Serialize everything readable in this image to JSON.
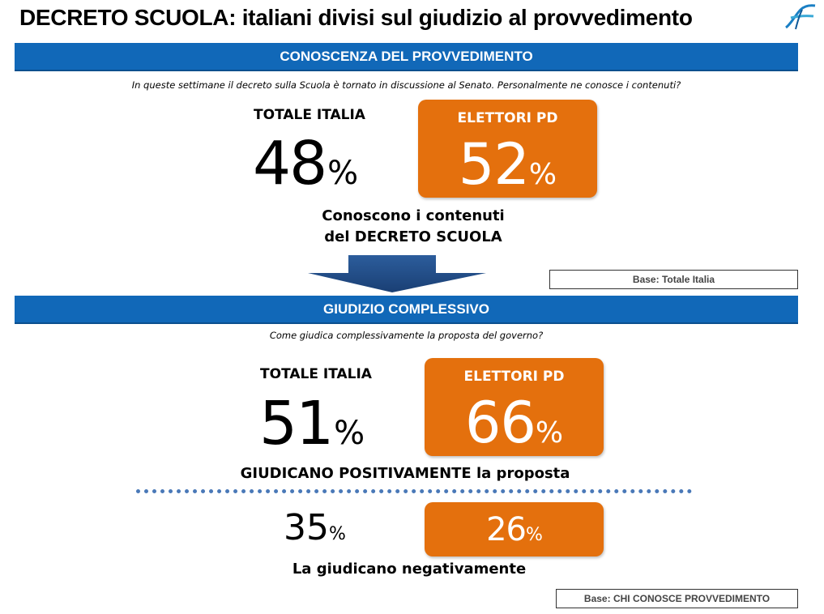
{
  "title": "DECRETO SCUOLA: italiani divisi sul giudizio al provvedimento",
  "logo_icon": "swoosh-logo-icon",
  "colors": {
    "band": "#1168b8",
    "orange": "#e4700d",
    "dotted_line": "#4a79b8"
  },
  "section1": {
    "band_label": "CONOSCENZA DEL PROVVEDIMENTO",
    "question": "In queste settimane il decreto sulla Scuola è tornato in discussione al Senato. Personalmente ne conosce i contenuti?",
    "total_label": "TOTALE ITALIA",
    "total_value": "48",
    "pd_label": "ELETTORI PD",
    "pd_value": "52",
    "caption_line1": "Conoscono i contenuti",
    "caption_line2": "del DECRETO SCUOLA",
    "base": "Base: Totale Italia"
  },
  "section2": {
    "band_label": "GIUDIZIO COMPLESSIVO",
    "question": "Come giudica complessivamente la proposta del governo?",
    "total_label": "TOTALE ITALIA",
    "positive_total": "51",
    "pd_label": "ELETTORI PD",
    "positive_pd": "66",
    "positive_caption": "GIUDICANO POSITIVAMENTE la proposta",
    "negative_total": "35",
    "negative_pd": "26",
    "negative_caption": "La giudicano negativamente",
    "base": "Base: CHI CONOSCE PROVVEDIMENTO"
  },
  "percent_sign": "%"
}
